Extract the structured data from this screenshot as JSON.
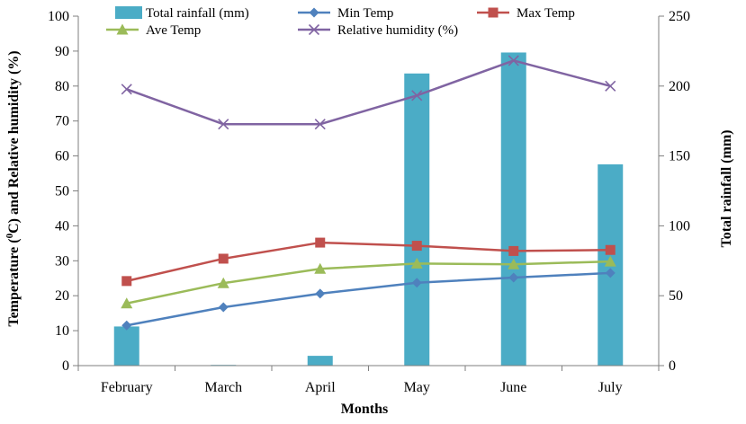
{
  "chart_data": {
    "type": "bar+line",
    "categories": [
      "February",
      "March",
      "April",
      "May",
      "June",
      "July"
    ],
    "xlabel": "Months",
    "ylabel_left_parts": [
      "Temperature (",
      "0",
      "C) and Relative humidity (%)"
    ],
    "ylabel_right": "Total rainfall (mm)",
    "ylim_left": [
      0,
      100
    ],
    "yticks_left": [
      "0",
      "10",
      "20",
      "30",
      "40",
      "50",
      "60",
      "70",
      "80",
      "90",
      "100"
    ],
    "ylim_right": [
      0,
      250
    ],
    "yticks_right": [
      "0",
      "50",
      "100",
      "150",
      "200",
      "250"
    ],
    "bars": {
      "name": "Total rainfall (mm)",
      "axis": "right",
      "color": "#4bacc6",
      "values": [
        28,
        0.5,
        7,
        209,
        224,
        144
      ]
    },
    "series": [
      {
        "name": "Min Temp",
        "marker": "diamond",
        "color": "#4f81bd",
        "values": [
          11.5,
          16.7,
          20.6,
          23.7,
          25.2,
          26.5
        ]
      },
      {
        "name": "Max Temp",
        "marker": "square",
        "color": "#c0504d",
        "values": [
          24.2,
          30.6,
          35.2,
          34.3,
          32.8,
          33.1
        ]
      },
      {
        "name": "Ave Temp",
        "marker": "triangle",
        "color": "#9bbb59",
        "values": [
          17.8,
          23.6,
          27.7,
          29.2,
          29.0,
          29.8
        ]
      },
      {
        "name": "Relative humidity (%)",
        "marker": "x",
        "color": "#8064a2",
        "values": [
          79.1,
          69.1,
          69.1,
          77.3,
          87.3,
          80.0
        ]
      }
    ],
    "legend": [
      {
        "label": "Total rainfall (mm)",
        "kind": "bar",
        "color": "#4bacc6"
      },
      {
        "label": "Min Temp",
        "kind": "diamond",
        "color": "#4f81bd"
      },
      {
        "label": "Max Temp",
        "kind": "square",
        "color": "#c0504d"
      },
      {
        "label": "Ave Temp",
        "kind": "triangle",
        "color": "#9bbb59"
      },
      {
        "label": "Relative humidity (%)",
        "kind": "x",
        "color": "#8064a2"
      }
    ],
    "legend_position": "top"
  }
}
